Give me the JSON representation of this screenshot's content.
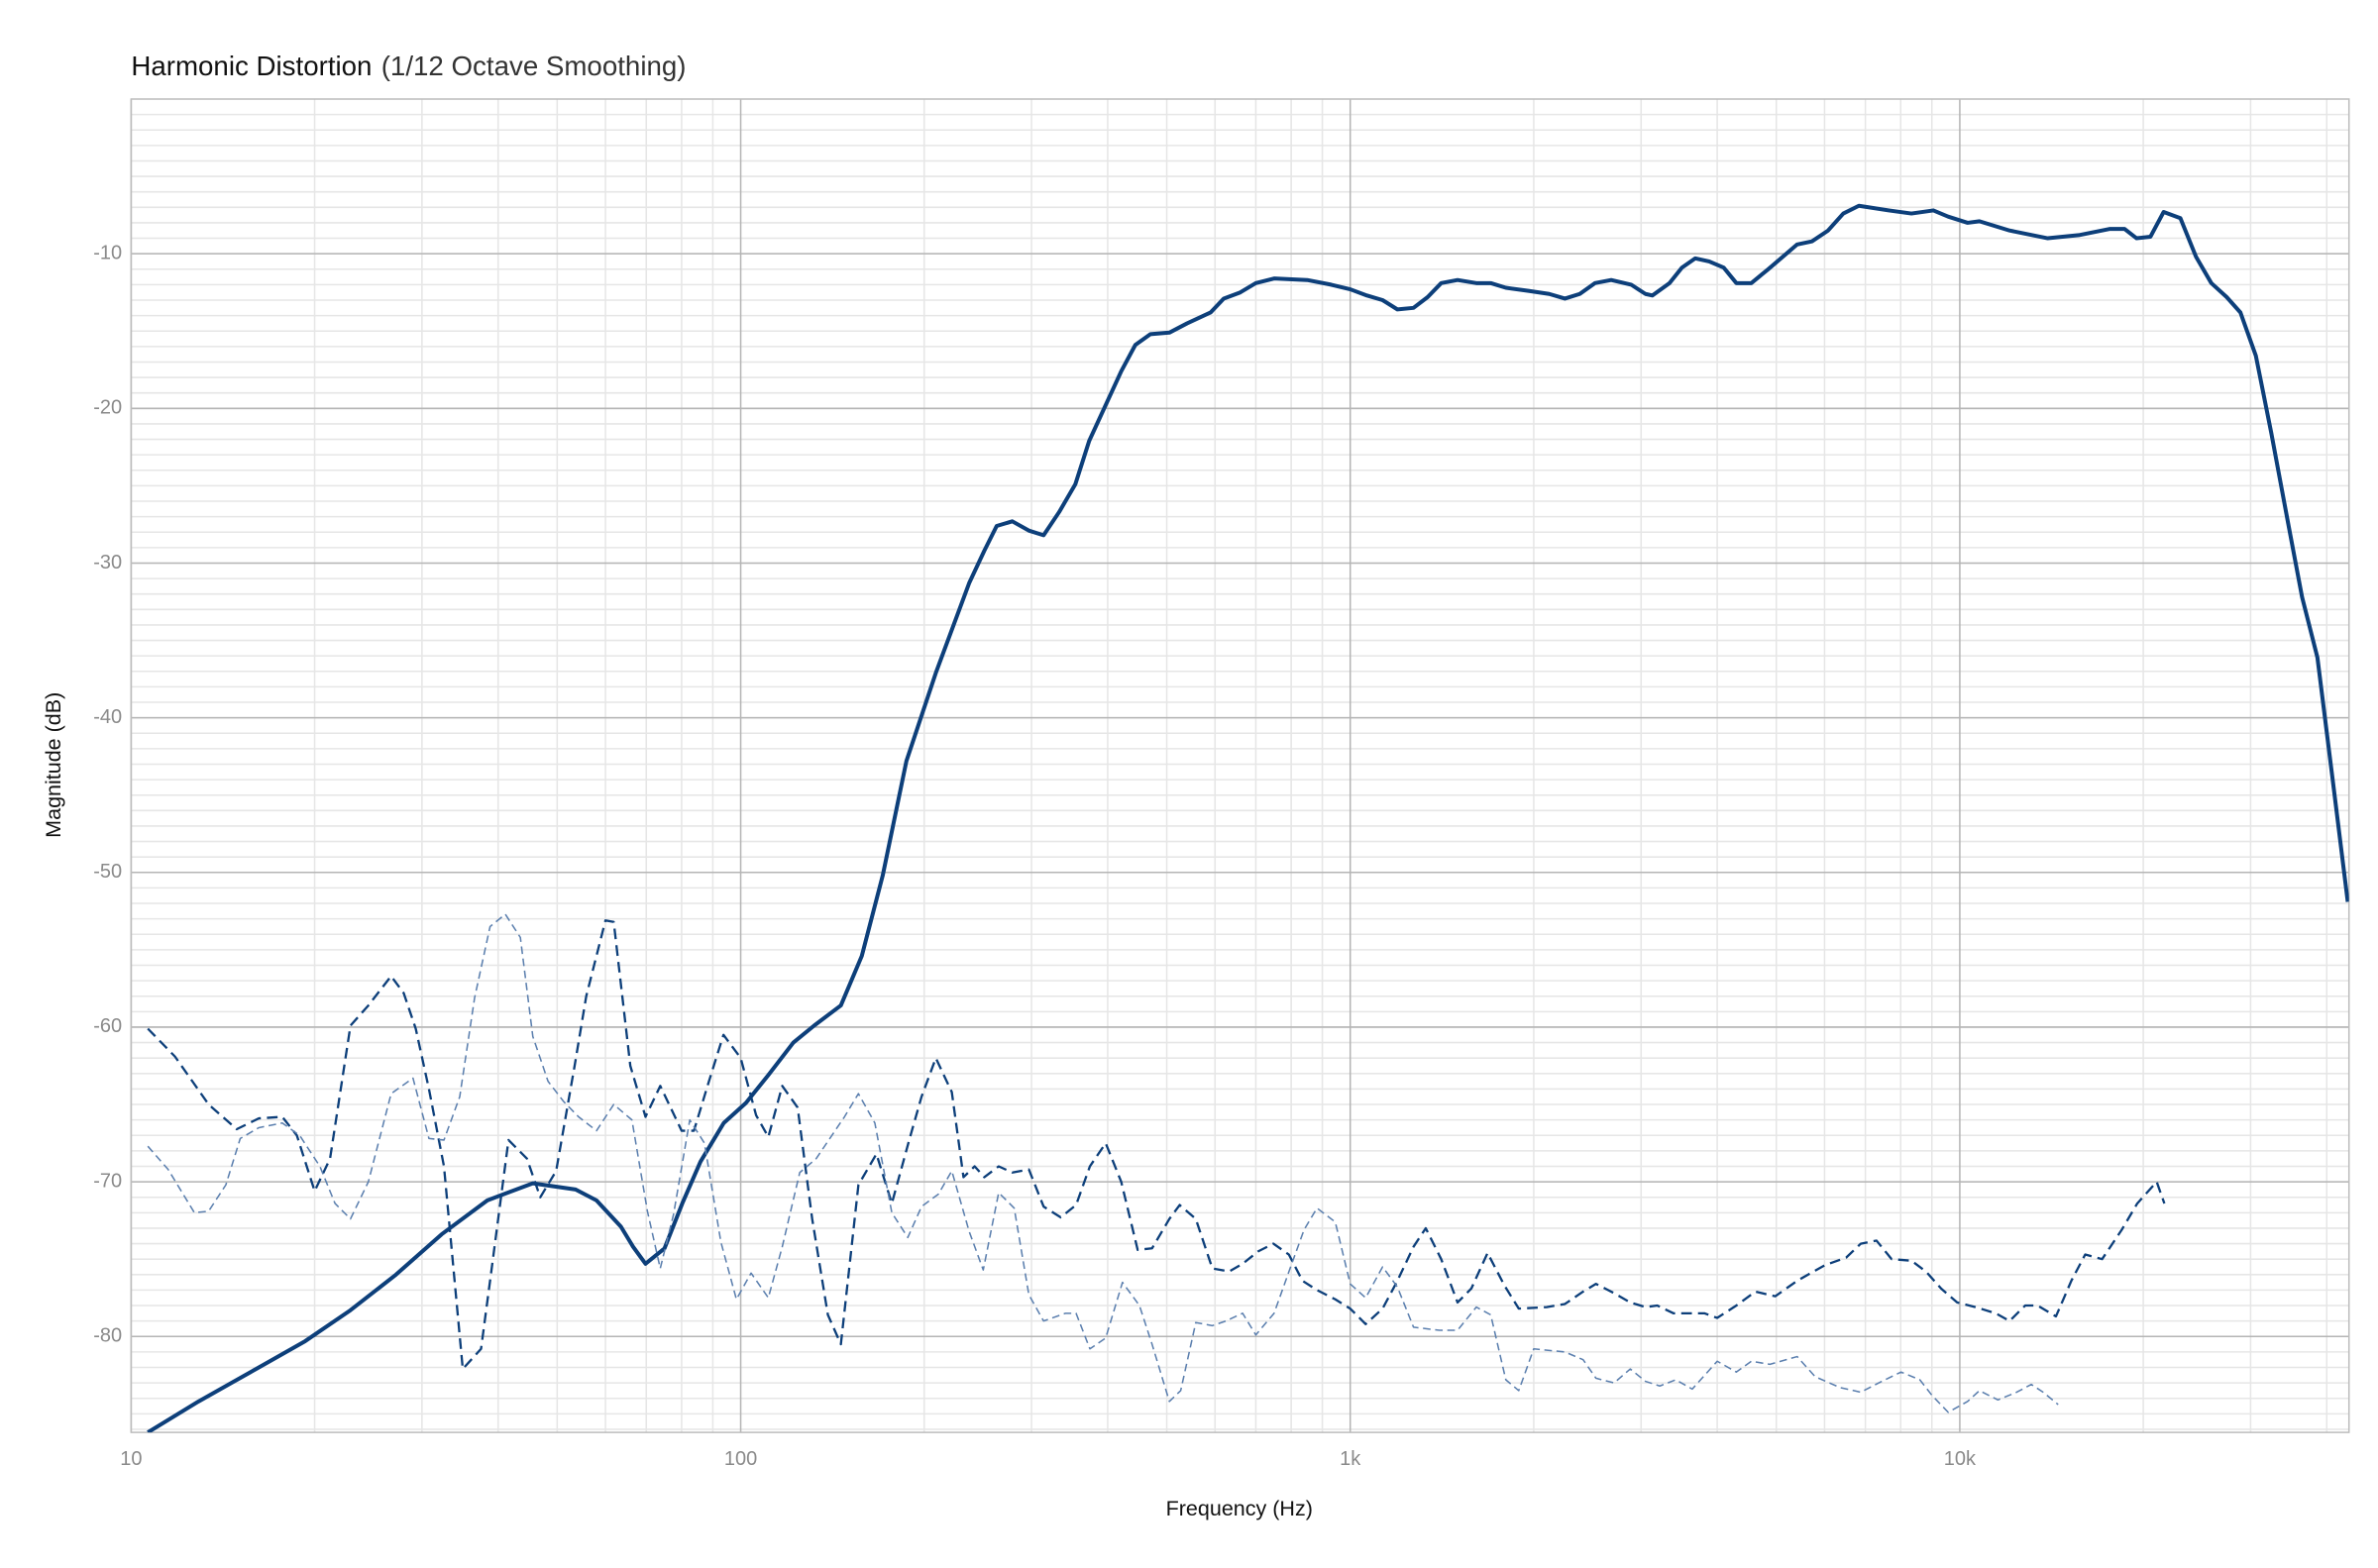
{
  "chart_data": {
    "type": "line",
    "title": "Harmonic Distortion",
    "subtitle": "(1/12 Octave Smoothing)",
    "x_label": "Frequency (Hz)",
    "y_label": "Magnitude (dB)",
    "xscale": "log",
    "xlim": [
      10,
      43500
    ],
    "ylim": [
      -86.2,
      0
    ],
    "xticks": [
      10,
      100,
      {
        "value": 1000,
        "label": "1k"
      },
      {
        "value": 10000,
        "label": "10k"
      }
    ],
    "yticks": [
      -80,
      -70,
      -60,
      -50,
      -40,
      -30,
      -20,
      -10
    ],
    "grid": true,
    "minor_grid": true,
    "series": [
      {
        "color": "#0d3f7a",
        "style": "bold",
        "x": [
          10.65,
          12.9,
          16.2,
          19.3,
          22.9,
          27.2,
          32.3,
          38.4,
          45.6,
          53.6,
          58,
          63.6,
          66.6,
          69.8,
          75,
          80.2,
          85.9,
          93.8,
          102,
          111,
          122,
          132,
          146,
          158,
          171,
          187,
          209,
          237,
          251,
          263,
          279,
          297,
          314,
          333,
          354,
          373,
          421,
          444,
          470,
          505,
          540,
          590,
          620,
          660,
          700,
          750,
          850,
          930,
          1000,
          1065,
          1130,
          1195,
          1270,
          1340,
          1410,
          1500,
          1610,
          1700,
          1800,
          1960,
          2120,
          2250,
          2380,
          2520,
          2680,
          2890,
          3050,
          3130,
          3340,
          3500,
          3680,
          3880,
          4100,
          4300,
          4550,
          4850,
          5410,
          5720,
          6080,
          6440,
          6830,
          7650,
          8330,
          9050,
          9570,
          10300,
          10770,
          12070,
          13940,
          15670,
          17600,
          18640,
          19500,
          20550,
          21600,
          23010,
          24410,
          25860,
          27400,
          28870,
          30600,
          32440,
          34560,
          36440,
          38610,
          40900,
          43300
        ],
        "values": [
          -86.2,
          -84.2,
          -82,
          -80.3,
          -78.3,
          -76,
          -73.4,
          -71.2,
          -70.1,
          -70.5,
          -71.2,
          -72.9,
          -74.2,
          -75.3,
          -74.3,
          -71.4,
          -68.7,
          -66.2,
          -64.9,
          -63.1,
          -61,
          -59.9,
          -58.6,
          -55.4,
          -50.2,
          -42.8,
          -37.1,
          -31.3,
          -29.2,
          -27.6,
          -27.3,
          -27.9,
          -28.2,
          -26.7,
          -24.9,
          -22.1,
          -17.6,
          -15.9,
          -15.2,
          -15.1,
          -14.5,
          -13.8,
          -12.9,
          -12.5,
          -11.9,
          -11.6,
          -11.7,
          -12,
          -12.3,
          -12.7,
          -13,
          -13.6,
          -13.5,
          -12.8,
          -11.9,
          -11.7,
          -11.9,
          -11.9,
          -12.2,
          -12.4,
          -12.6,
          -12.9,
          -12.6,
          -11.9,
          -11.7,
          -12,
          -12.6,
          -12.7,
          -11.9,
          -10.9,
          -10.3,
          -10.5,
          -10.9,
          -11.9,
          -11.9,
          -11,
          -9.4,
          -9.2,
          -8.5,
          -7.4,
          -6.9,
          -7.2,
          -7.4,
          -7.2,
          -7.6,
          -8,
          -7.9,
          -8.5,
          -9,
          -8.8,
          -8.4,
          -8.4,
          -9,
          -8.9,
          -7.3,
          -7.7,
          -10.2,
          -11.9,
          -12.8,
          -13.8,
          -16.6,
          -21.6,
          -27.4,
          -32.2,
          -36.1,
          -44,
          -51.9
        ]
      },
      {
        "color": "#0d3f7a",
        "style": "dashed",
        "x": [
          10.65,
          11.8,
          13.4,
          14.9,
          16.2,
          17.7,
          18.7,
          20,
          21.2,
          22.9,
          24.5,
          26.7,
          28,
          29.3,
          30.8,
          32.6,
          35,
          37.5,
          38.8,
          41.6,
          44.6,
          46.9,
          49.8,
          53.4,
          55.8,
          60,
          61.9,
          65.9,
          69.8,
          73.8,
          80,
          83.8,
          88.7,
          93.7,
          100,
          106,
          111,
          117,
          124,
          131,
          139,
          146,
          156,
          167,
          177,
          189,
          198,
          209,
          222,
          232,
          242,
          251,
          265,
          279,
          297,
          314,
          335,
          355,
          374,
          397,
          421,
          448,
          473,
          505,
          525,
          558,
          594,
          633,
          666,
          706,
          748,
          793,
          835,
          882,
          945,
          1000,
          1060,
          1130,
          1195,
          1270,
          1330,
          1410,
          1500,
          1580,
          1680,
          1790,
          1890,
          2100,
          2250,
          2410,
          2530,
          2710,
          2880,
          3050,
          3190,
          3390,
          3810,
          4000,
          4300,
          4620,
          4980,
          5410,
          6000,
          6510,
          6880,
          7300,
          7730,
          8330,
          8800,
          9320,
          9900,
          10610,
          11450,
          12070,
          12800,
          13420,
          14380,
          15240,
          16060,
          17120,
          18440,
          19550,
          21040,
          21660
        ],
        "values": [
          -60.1,
          -61.9,
          -65,
          -66.6,
          -65.9,
          -65.8,
          -67,
          -70.6,
          -68.5,
          -59.9,
          -58.6,
          -56.7,
          -57.8,
          -60.1,
          -64,
          -69,
          -82.1,
          -80.8,
          -76.4,
          -67.3,
          -68.5,
          -71,
          -69.3,
          -62.5,
          -58,
          -53.1,
          -53.2,
          -62.5,
          -65.8,
          -63.8,
          -66.7,
          -66.7,
          -63.5,
          -60.5,
          -62,
          -65.7,
          -67.1,
          -63.8,
          -65.2,
          -72.4,
          -78.6,
          -80.5,
          -70.2,
          -68.2,
          -71.4,
          -67.3,
          -64.5,
          -62,
          -64.2,
          -69.7,
          -69,
          -69.7,
          -69,
          -69.4,
          -69.2,
          -71.6,
          -72.3,
          -71.5,
          -69,
          -67.5,
          -70,
          -74.4,
          -74.3,
          -72.4,
          -71.5,
          -72.4,
          -75.6,
          -75.8,
          -75.3,
          -74.5,
          -74,
          -74.7,
          -76.4,
          -77,
          -77.6,
          -78.2,
          -79.2,
          -78.2,
          -76.4,
          -74.2,
          -73,
          -75,
          -77.8,
          -76.9,
          -74.6,
          -76.7,
          -78.2,
          -78.1,
          -77.9,
          -77.1,
          -76.6,
          -77.2,
          -77.8,
          -78.1,
          -78,
          -78.5,
          -78.5,
          -78.8,
          -78,
          -77.1,
          -77.4,
          -76.4,
          -75.4,
          -74.9,
          -74,
          -73.8,
          -75,
          -75.1,
          -75.8,
          -76.9,
          -77.8,
          -78.1,
          -78.5,
          -79,
          -78,
          -78,
          -78.7,
          -76.4,
          -74.7,
          -75,
          -73.1,
          -71.4,
          -70,
          -71.4
        ]
      },
      {
        "color": "#5b7fae",
        "style": "thin-dashed",
        "x": [
          10.65,
          11.5,
          12.7,
          13.4,
          14.3,
          15.1,
          16.2,
          17.7,
          18.9,
          20.4,
          21.6,
          22.9,
          24.5,
          26.7,
          29,
          30.8,
          32.6,
          34.6,
          36.6,
          38.8,
          41.1,
          43.5,
          45.6,
          48.3,
          51.2,
          54.2,
          58,
          61.9,
          66.3,
          70.3,
          73.8,
          77.6,
          82.5,
          87.2,
          92.8,
          98.4,
          104,
          111,
          117,
          125,
          133,
          148,
          156,
          166,
          177,
          188,
          198,
          211,
          222,
          237,
          250,
          265,
          281,
          297,
          314,
          341,
          355,
          374,
          397,
          423,
          451,
          473,
          505,
          527,
          558,
          594,
          625,
          666,
          700,
          750,
          795,
          840,
          882,
          945,
          1000,
          1060,
          1130,
          1195,
          1270,
          1400,
          1500,
          1610,
          1700,
          1800,
          1890,
          2000,
          2250,
          2410,
          2530,
          2710,
          2880,
          3050,
          3220,
          3420,
          3640,
          4000,
          4300,
          4550,
          4880,
          5410,
          5790,
          6360,
          6880,
          7450,
          8010,
          8600,
          9000,
          9570,
          10300,
          10770,
          11550,
          12400,
          13100,
          13700,
          14500
        ],
        "values": [
          -67.7,
          -69.2,
          -72,
          -71.9,
          -70.2,
          -67.2,
          -66.5,
          -66.2,
          -67,
          -69,
          -71.4,
          -72.4,
          -70,
          -64.3,
          -63.3,
          -67.2,
          -67.3,
          -64.5,
          -58.1,
          -53.5,
          -52.7,
          -54.2,
          -60.6,
          -63.5,
          -64.8,
          -65.8,
          -66.7,
          -65,
          -66,
          -71.9,
          -75.6,
          -72.1,
          -66,
          -67.5,
          -73.9,
          -77.6,
          -75.9,
          -77.5,
          -74.2,
          -69.4,
          -68.5,
          -65.8,
          -64.3,
          -66.2,
          -72,
          -73.6,
          -71.6,
          -70.8,
          -69.3,
          -73.2,
          -75.7,
          -70.7,
          -71.7,
          -77.3,
          -79,
          -78.5,
          -78.5,
          -80.8,
          -80.1,
          -76.5,
          -78,
          -80.5,
          -84.2,
          -83.5,
          -79.1,
          -79.3,
          -79,
          -78.5,
          -79.9,
          -78.5,
          -75.7,
          -73.1,
          -71.7,
          -72.6,
          -76.6,
          -77.5,
          -75.5,
          -76.8,
          -79.4,
          -79.6,
          -79.6,
          -78.1,
          -78.6,
          -82.8,
          -83.5,
          -80.8,
          -81,
          -81.5,
          -82.7,
          -83,
          -82.1,
          -82.9,
          -83.2,
          -82.8,
          -83.4,
          -81.6,
          -82.3,
          -81.6,
          -81.8,
          -81.3,
          -82.6,
          -83.3,
          -83.6,
          -82.9,
          -82.3,
          -82.8,
          -83.8,
          -84.9,
          -84.2,
          -83.5,
          -84.1,
          -83.6,
          -83.1,
          -83.6,
          -84.4
        ]
      }
    ]
  }
}
